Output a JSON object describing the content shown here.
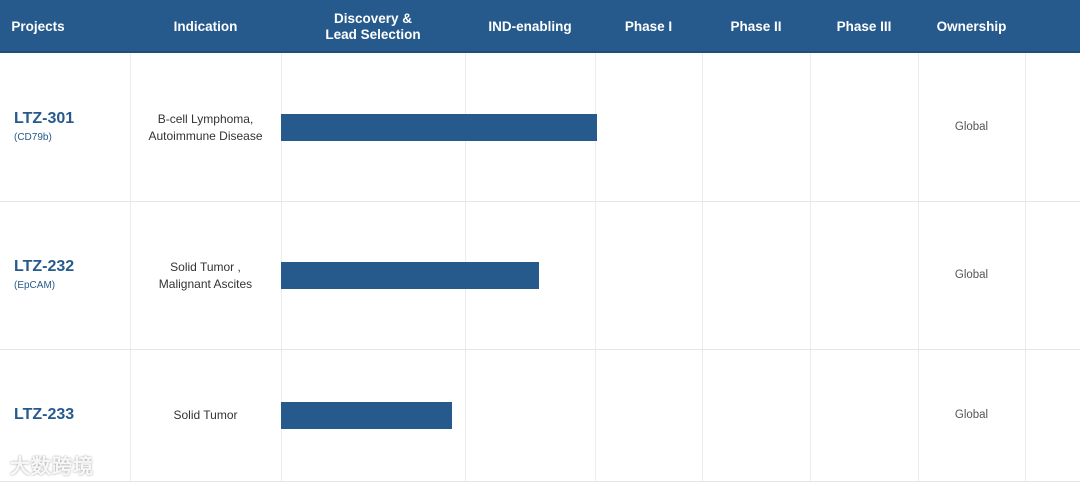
{
  "header": {
    "columns": [
      "Projects",
      "Indication",
      "Discovery &\nLead Selection",
      "IND-enabling",
      "Phase I",
      "Phase II",
      "Phase III",
      "Ownership"
    ]
  },
  "accent_color": "#265a8c",
  "rows": [
    {
      "name": "LTZ-301",
      "target": "(CD79b)",
      "indication": "B-cell Lymphoma,\nAutoimmune Disease",
      "progress_stage": "IND-enabling",
      "progress_stages_completed": 2.0,
      "ownership": "Global"
    },
    {
      "name": "LTZ-232",
      "target": "(EpCAM)",
      "indication": "Solid Tumor ,\nMalignant Ascites",
      "progress_stage": "IND-enabling",
      "progress_stages_completed": 1.55,
      "ownership": "Global"
    },
    {
      "name": "LTZ-233",
      "target": "",
      "indication": "Solid Tumor",
      "progress_stage": "Discovery & Lead Selection",
      "progress_stages_completed": 0.92,
      "ownership": "Global"
    }
  ],
  "watermark": "大数跨境"
}
